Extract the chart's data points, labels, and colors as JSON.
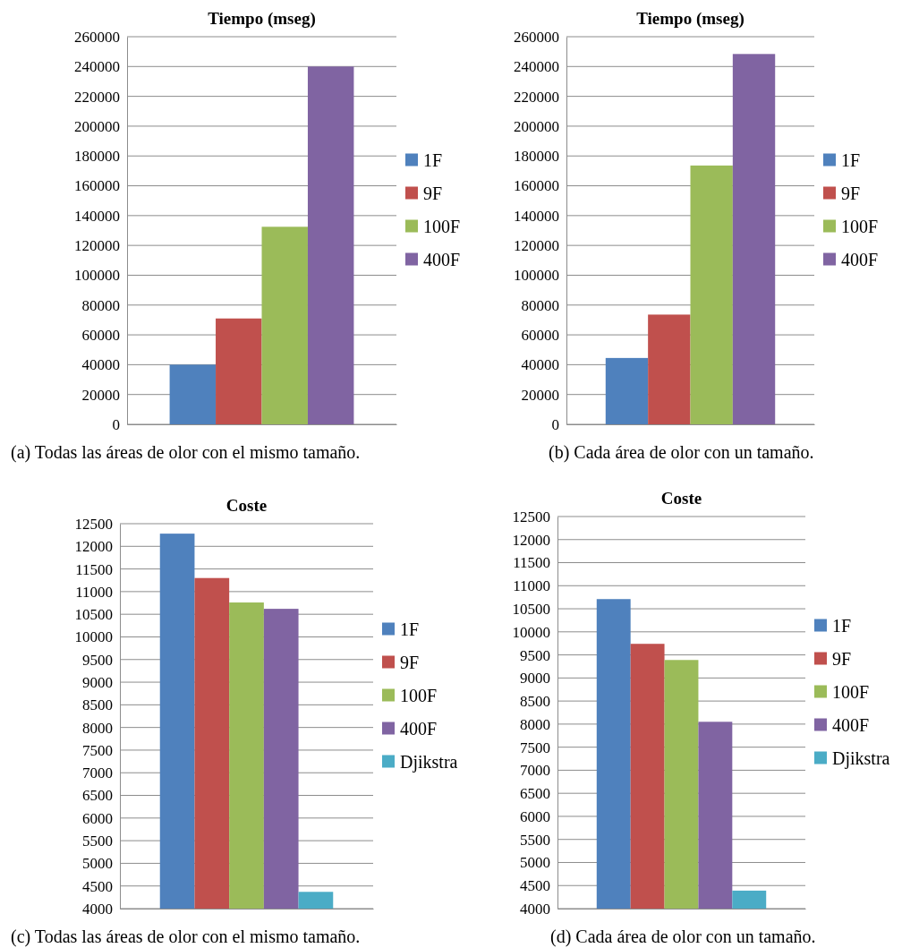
{
  "chart_data": [
    {
      "type": "bar",
      "title": "Tiempo (mseg)",
      "categories": [
        null
      ],
      "series": [
        {
          "name": "1F",
          "color": "#4f81bd",
          "values": [
            40000
          ]
        },
        {
          "name": "9F",
          "color": "#c0504d",
          "values": [
            71000
          ]
        },
        {
          "name": "100F",
          "color": "#9bbb59",
          "values": [
            132500
          ]
        },
        {
          "name": "400F",
          "color": "#8064a2",
          "values": [
            240000
          ]
        }
      ],
      "ylim": [
        0,
        260000
      ],
      "yticks": [
        0,
        20000,
        40000,
        60000,
        80000,
        100000,
        120000,
        140000,
        160000,
        180000,
        200000,
        220000,
        240000,
        260000
      ],
      "grid": "y",
      "legend": "right",
      "annotations": [
        "(a) Todas las áreas de olor con el mismo tamaño."
      ]
    },
    {
      "type": "bar",
      "title": "Tiempo (mseg)",
      "categories": [
        null
      ],
      "series": [
        {
          "name": "1F",
          "color": "#4f81bd",
          "values": [
            44500
          ]
        },
        {
          "name": "9F",
          "color": "#c0504d",
          "values": [
            73600
          ]
        },
        {
          "name": "100F",
          "color": "#9bbb59",
          "values": [
            173600
          ]
        },
        {
          "name": "400F",
          "color": "#8064a2",
          "values": [
            248400
          ]
        }
      ],
      "ylim": [
        0,
        260000
      ],
      "yticks": [
        0,
        20000,
        40000,
        60000,
        80000,
        100000,
        120000,
        140000,
        160000,
        180000,
        200000,
        220000,
        240000,
        260000
      ],
      "grid": "y",
      "legend": "right",
      "annotations": [
        "(b) Cada área de olor con un tamaño."
      ]
    },
    {
      "type": "bar",
      "title": "Coste",
      "categories": [
        null
      ],
      "series": [
        {
          "name": "1F",
          "color": "#4f81bd",
          "values": [
            12280
          ]
        },
        {
          "name": "9F",
          "color": "#c0504d",
          "values": [
            11300
          ]
        },
        {
          "name": "100F",
          "color": "#9bbb59",
          "values": [
            10760
          ]
        },
        {
          "name": "400F",
          "color": "#8064a2",
          "values": [
            10620
          ]
        },
        {
          "name": "Djikstra",
          "color": "#4bacc6",
          "values": [
            4370
          ]
        }
      ],
      "ylim": [
        4000,
        12500
      ],
      "yticks": [
        4000,
        4500,
        5000,
        5500,
        6000,
        6500,
        7000,
        7500,
        8000,
        8500,
        9000,
        9500,
        10000,
        10500,
        11000,
        11500,
        12000,
        12500
      ],
      "grid": "y",
      "legend": "right",
      "annotations": [
        "(c) Todas las áreas de olor con el mismo tamaño."
      ]
    },
    {
      "type": "bar",
      "title": "Coste",
      "categories": [
        null
      ],
      "series": [
        {
          "name": "1F",
          "color": "#4f81bd",
          "values": [
            10710
          ]
        },
        {
          "name": "9F",
          "color": "#c0504d",
          "values": [
            9740
          ]
        },
        {
          "name": "100F",
          "color": "#9bbb59",
          "values": [
            9390
          ]
        },
        {
          "name": "400F",
          "color": "#8064a2",
          "values": [
            8050
          ]
        },
        {
          "name": "Djikstra",
          "color": "#4bacc6",
          "values": [
            4390
          ]
        }
      ],
      "ylim": [
        4000,
        12500
      ],
      "yticks": [
        4000,
        4500,
        5000,
        5500,
        6000,
        6500,
        7000,
        7500,
        8000,
        8500,
        9000,
        9500,
        10000,
        10500,
        11000,
        11500,
        12000,
        12500
      ],
      "grid": "y",
      "legend": "right",
      "annotations": [
        "(d) Cada área de olor con un tamaño."
      ]
    }
  ]
}
